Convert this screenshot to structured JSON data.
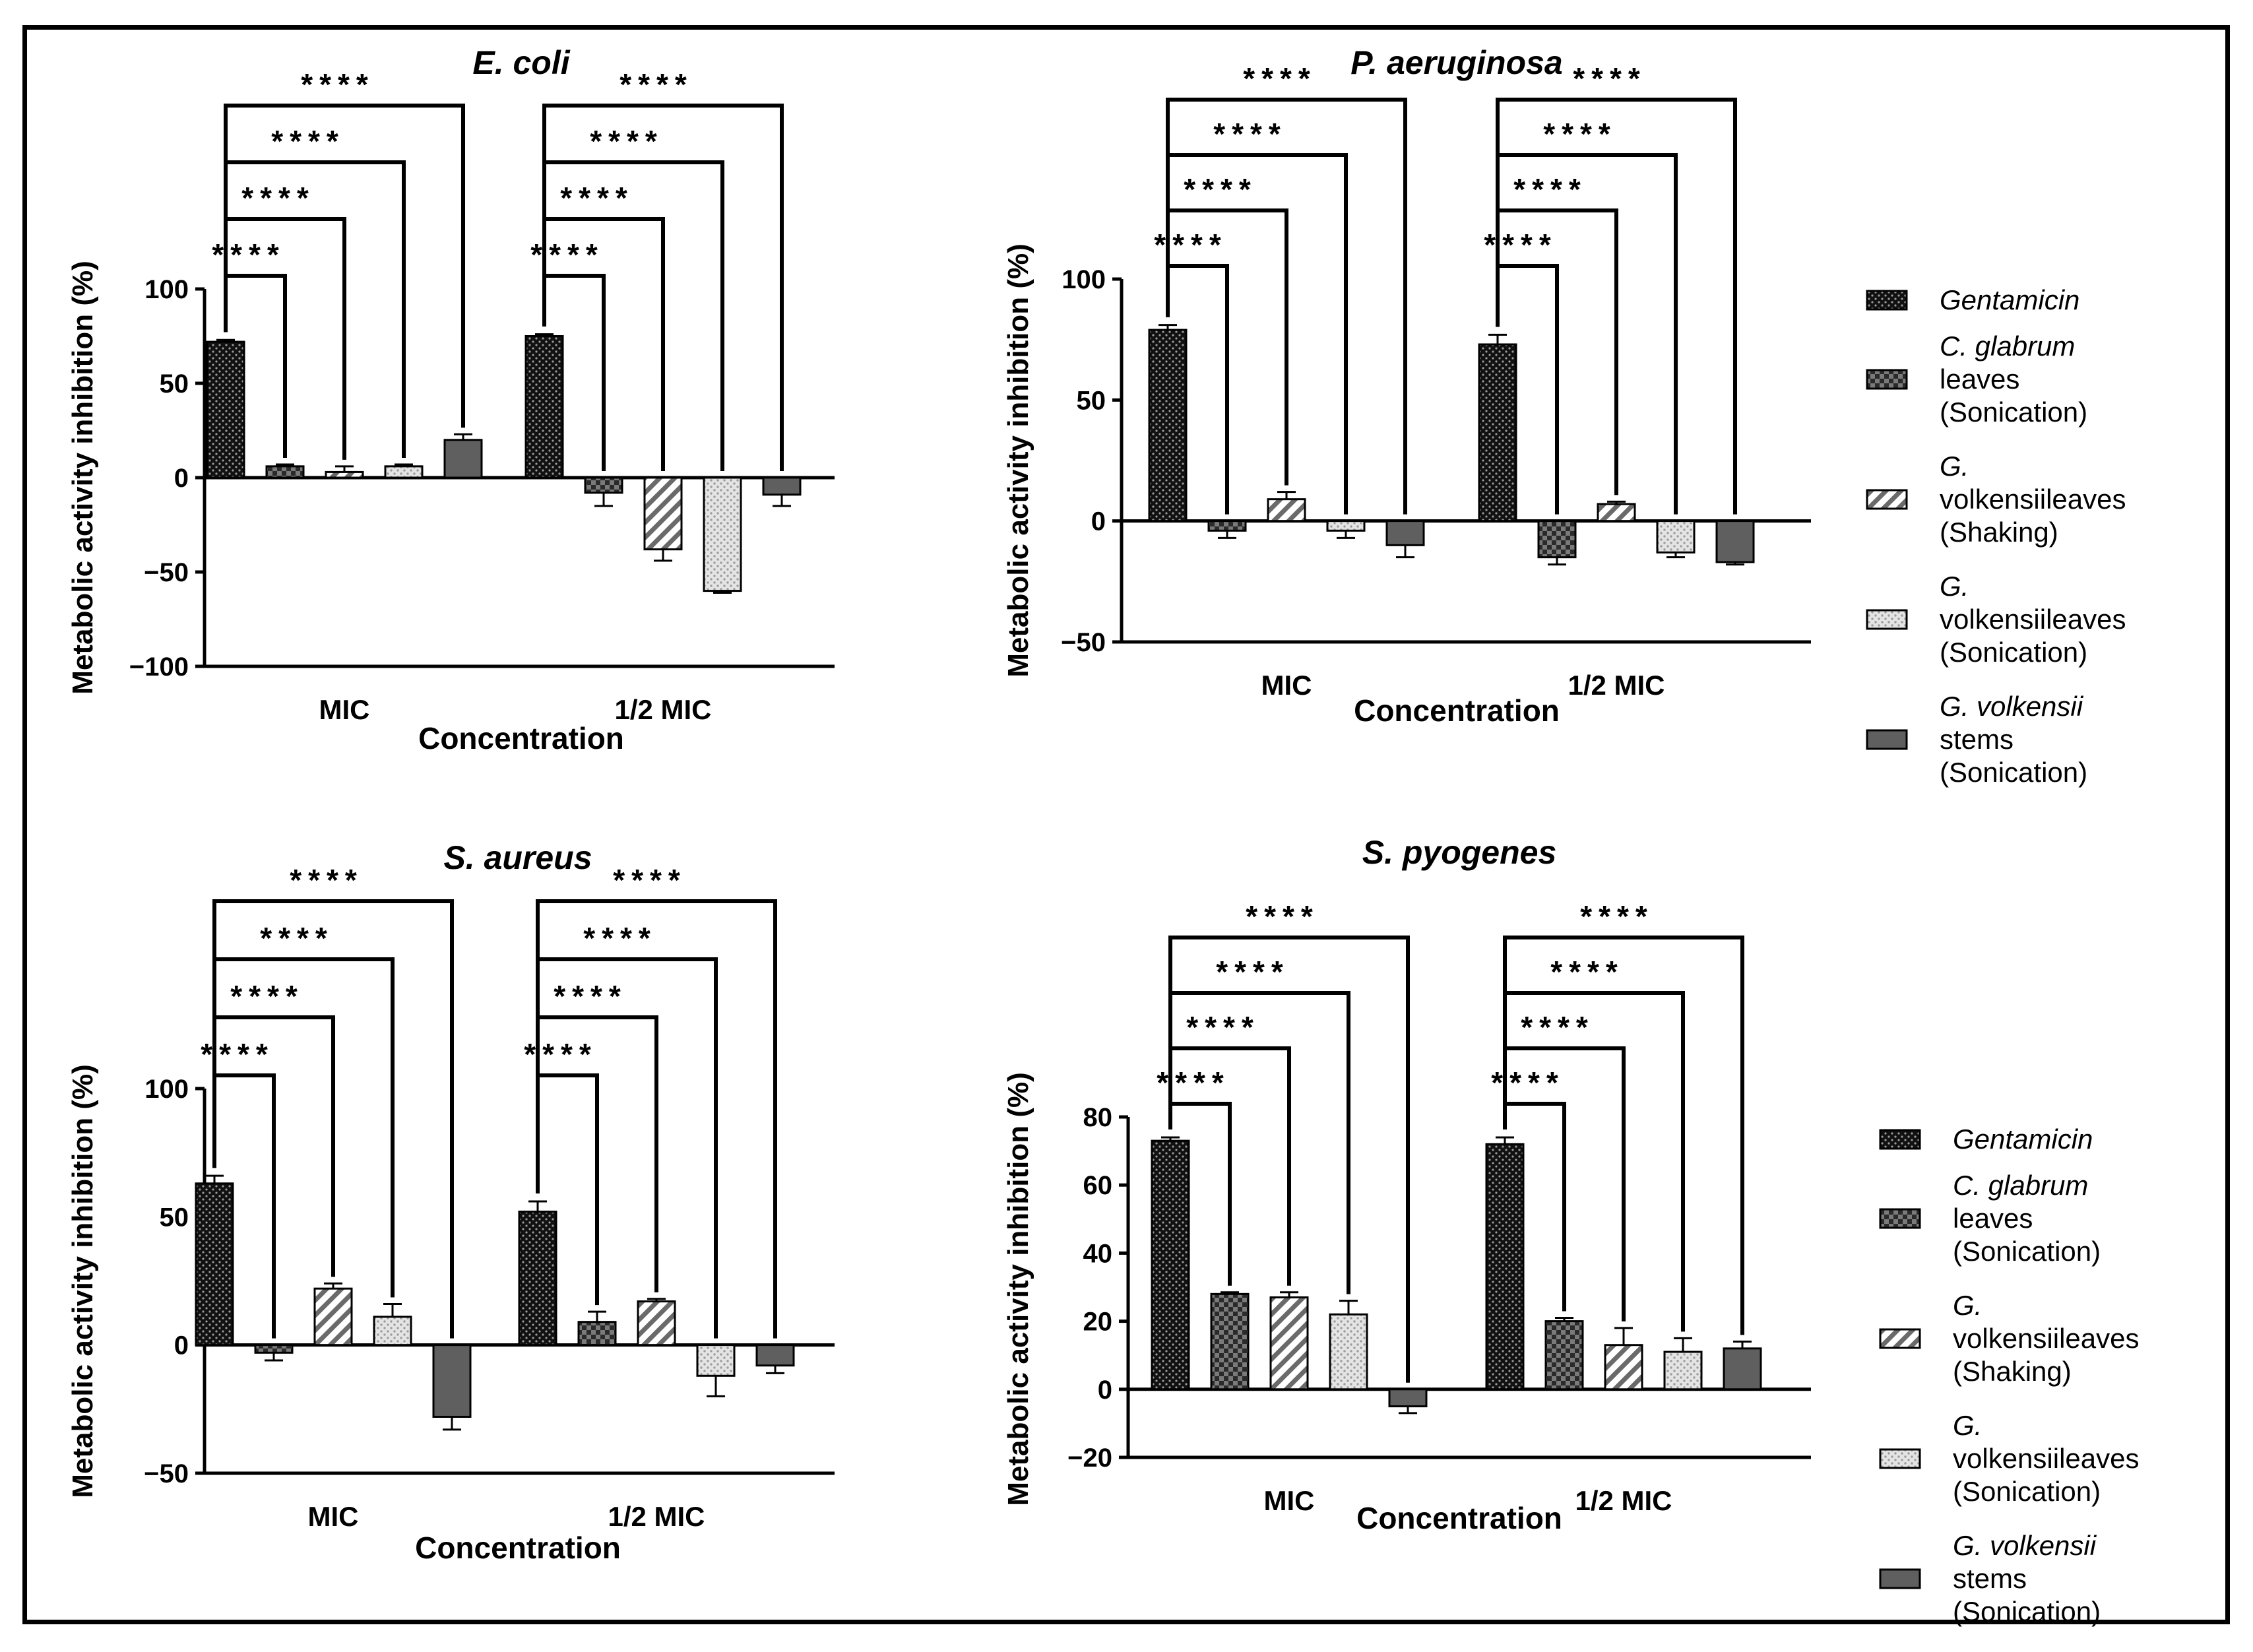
{
  "legend": [
    {
      "label_lines": [
        "Gentamicin"
      ],
      "italic_lines": [
        0
      ],
      "pattern": "pat-dots-dark"
    },
    {
      "label_lines": [
        "C. glabrum",
        "leaves",
        "(Sonication)"
      ],
      "italic_lines": [
        0
      ],
      "pattern": "pat-checker"
    },
    {
      "label_lines": [
        "G.",
        "volkensiileaves",
        "(Shaking)"
      ],
      "italic_lines": [
        0
      ],
      "pattern": "pat-hatch"
    },
    {
      "label_lines": [
        "G.",
        "volkensiileaves",
        "(Sonication)"
      ],
      "italic_lines": [
        0
      ],
      "pattern": "pat-dots-light"
    },
    {
      "label_lines": [
        "G. volkensii",
        "stems",
        "(Sonication)"
      ],
      "italic_lines": [
        0
      ],
      "pattern": "pat-solid"
    }
  ],
  "colors": {
    "solid_bar": "#5f5f5f",
    "dark_fill": "#111111",
    "frame": "#000000"
  },
  "significance_label": "****",
  "chart_data": [
    {
      "type": "bar",
      "title": "E. coli",
      "xlabel": "Concentration",
      "ylabel": "Metabolic activity inhibition (%)",
      "categories": [
        "MIC",
        "1/2 MIC"
      ],
      "ylim": [
        -100,
        100
      ],
      "yticks": [
        -100,
        -50,
        0,
        50,
        100
      ],
      "ytick_labels": [
        "−100",
        "−50",
        "0",
        "50",
        "100"
      ],
      "series": [
        {
          "name": "Gentamicin",
          "values": [
            72,
            75
          ],
          "errors": [
            1,
            1
          ]
        },
        {
          "name": "C. glabrum leaves (Sonication)",
          "values": [
            6,
            -8
          ],
          "errors": [
            1,
            7
          ]
        },
        {
          "name": "G. volkensiileaves (Shaking)",
          "values": [
            3,
            -38
          ],
          "errors": [
            3,
            6
          ]
        },
        {
          "name": "G. volkensiileaves (Sonication)",
          "values": [
            6,
            -60
          ],
          "errors": [
            1,
            1
          ]
        },
        {
          "name": "G. volkensii stems (Sonication)",
          "values": [
            20,
            -9
          ],
          "errors": [
            3,
            6
          ]
        }
      ],
      "significance": "****"
    },
    {
      "type": "bar",
      "title": "P. aeruginosa",
      "xlabel": "Concentration",
      "ylabel": "Metabolic activity inhibition (%)",
      "categories": [
        "MIC",
        "1/2 MIC"
      ],
      "ylim": [
        -50,
        100
      ],
      "yticks": [
        -50,
        0,
        50,
        100
      ],
      "ytick_labels": [
        "−50",
        "0",
        "50",
        "100"
      ],
      "series": [
        {
          "name": "Gentamicin",
          "values": [
            79,
            73
          ],
          "errors": [
            2,
            4
          ]
        },
        {
          "name": "C. glabrum leaves (Sonication)",
          "values": [
            -4,
            -15
          ],
          "errors": [
            3,
            3
          ]
        },
        {
          "name": "G. volkensiileaves (Shaking)",
          "values": [
            9,
            7
          ],
          "errors": [
            3,
            1
          ]
        },
        {
          "name": "G. volkensiileaves (Sonication)",
          "values": [
            -4,
            -13
          ],
          "errors": [
            3,
            2
          ]
        },
        {
          "name": "G. volkensii stems (Sonication)",
          "values": [
            -10,
            -17
          ],
          "errors": [
            5,
            1
          ]
        }
      ],
      "significance": "****"
    },
    {
      "type": "bar",
      "title": "S. aureus",
      "xlabel": "Concentration",
      "ylabel": "Metabolic activity inhibition (%)",
      "categories": [
        "MIC",
        "1/2 MIC"
      ],
      "ylim": [
        -50,
        100
      ],
      "yticks": [
        -50,
        0,
        50,
        100
      ],
      "ytick_labels": [
        "−50",
        "0",
        "50",
        "100"
      ],
      "series": [
        {
          "name": "Gentamicin",
          "values": [
            63,
            52
          ],
          "errors": [
            3,
            4
          ]
        },
        {
          "name": "C. glabrum leaves (Sonication)",
          "values": [
            -3,
            9
          ],
          "errors": [
            3,
            4
          ]
        },
        {
          "name": "G. volkensiileaves (Shaking)",
          "values": [
            22,
            17
          ],
          "errors": [
            2,
            1
          ]
        },
        {
          "name": "G. volkensiileaves (Sonication)",
          "values": [
            11,
            -12
          ],
          "errors": [
            5,
            8
          ]
        },
        {
          "name": "G. volkensii stems (Sonication)",
          "values": [
            -28,
            -8
          ],
          "errors": [
            5,
            3
          ]
        }
      ],
      "significance": "****"
    },
    {
      "type": "bar",
      "title": "S. pyogenes",
      "xlabel": "Concentration",
      "ylabel": "Metabolic activity inhibition (%)",
      "categories": [
        "MIC",
        "1/2 MIC"
      ],
      "ylim": [
        -20,
        80
      ],
      "yticks": [
        -20,
        0,
        20,
        40,
        60,
        80
      ],
      "ytick_labels": [
        "−20",
        "0",
        "20",
        "40",
        "60",
        "80"
      ],
      "series": [
        {
          "name": "Gentamicin",
          "values": [
            73,
            72
          ],
          "errors": [
            1,
            2
          ]
        },
        {
          "name": "C. glabrum leaves (Sonication)",
          "values": [
            28,
            20
          ],
          "errors": [
            0.5,
            1
          ]
        },
        {
          "name": "G. volkensiileaves (Shaking)",
          "values": [
            27,
            13
          ],
          "errors": [
            1.5,
            5
          ]
        },
        {
          "name": "G. volkensiileaves (Sonication)",
          "values": [
            22,
            11
          ],
          "errors": [
            4,
            4
          ]
        },
        {
          "name": "G. volkensii stems (Sonication)",
          "values": [
            -5,
            12
          ],
          "errors": [
            2,
            2
          ]
        }
      ],
      "significance": "****"
    }
  ]
}
